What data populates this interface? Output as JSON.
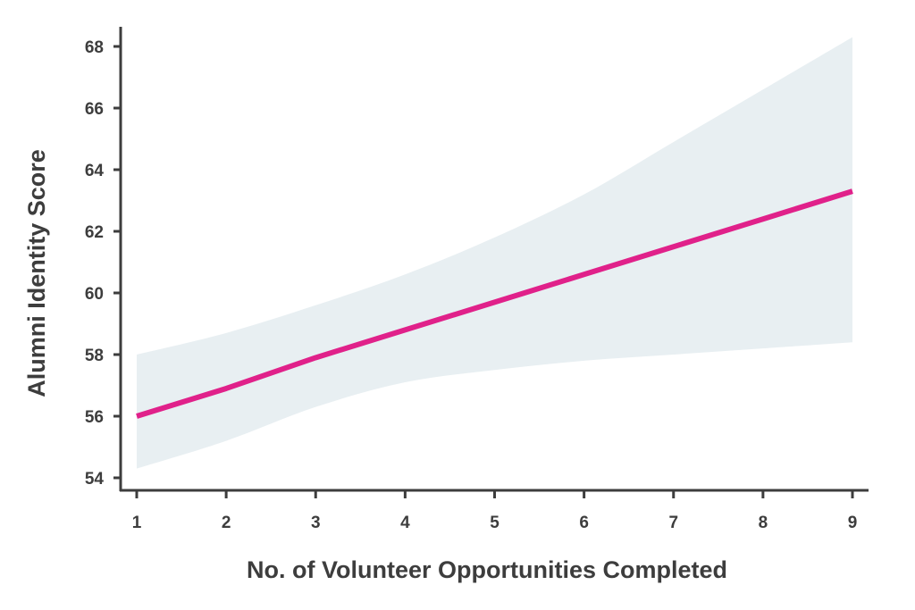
{
  "chart_data": {
    "type": "line",
    "title": "",
    "xlabel": "No. of Volunteer Opportunities Completed",
    "ylabel": "Alumni Identity Score",
    "xlim": [
      1,
      9
    ],
    "ylim": [
      54,
      68
    ],
    "x_ticks": [
      1,
      2,
      3,
      4,
      5,
      6,
      7,
      8,
      9
    ],
    "y_ticks": [
      54,
      56,
      58,
      60,
      62,
      64,
      66,
      68
    ],
    "grid": false,
    "legend": "none",
    "series": [
      {
        "x": [
          1,
          2,
          3,
          4,
          5,
          6,
          7,
          8,
          9
        ],
        "values": [
          56.0,
          56.9,
          57.9,
          58.8,
          59.7,
          60.6,
          61.5,
          62.4,
          63.3
        ],
        "ci_upper": [
          58.0,
          58.7,
          59.6,
          60.6,
          61.8,
          63.2,
          64.9,
          66.6,
          68.3
        ],
        "ci_lower": [
          54.3,
          55.2,
          56.3,
          57.1,
          57.5,
          57.8,
          58.0,
          58.2,
          58.4
        ],
        "color": "#e0218a",
        "band_color": "#e8eff2"
      }
    ],
    "colors": {
      "axis": "#3d3d3d",
      "text": "#3d3d3d"
    }
  }
}
